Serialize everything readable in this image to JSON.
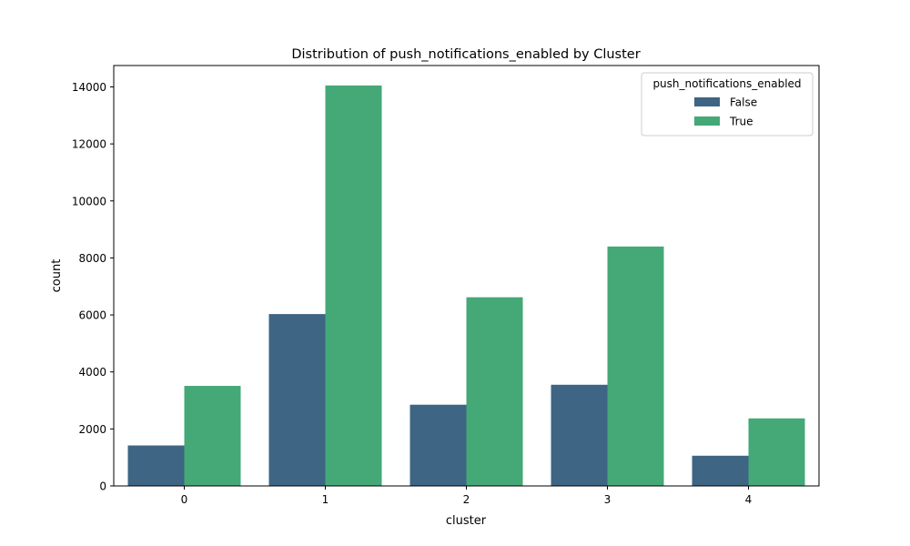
{
  "chart_data": {
    "type": "bar",
    "title": "Distribution of push_notifications_enabled by Cluster",
    "xlabel": "cluster",
    "ylabel": "count",
    "categories": [
      "0",
      "1",
      "2",
      "3",
      "4"
    ],
    "series": [
      {
        "name": "False",
        "color": "#3e6583",
        "values": [
          1420,
          6030,
          2850,
          3550,
          1060
        ]
      },
      {
        "name": "True",
        "color": "#45a877",
        "values": [
          3510,
          14050,
          6620,
          8400,
          2370
        ]
      }
    ],
    "ylim": [
      0,
      14750
    ],
    "yticks": [
      0,
      2000,
      4000,
      6000,
      8000,
      10000,
      12000,
      14000
    ],
    "legend": {
      "title": "push_notifications_enabled",
      "position": "top-right"
    },
    "grid": false
  }
}
